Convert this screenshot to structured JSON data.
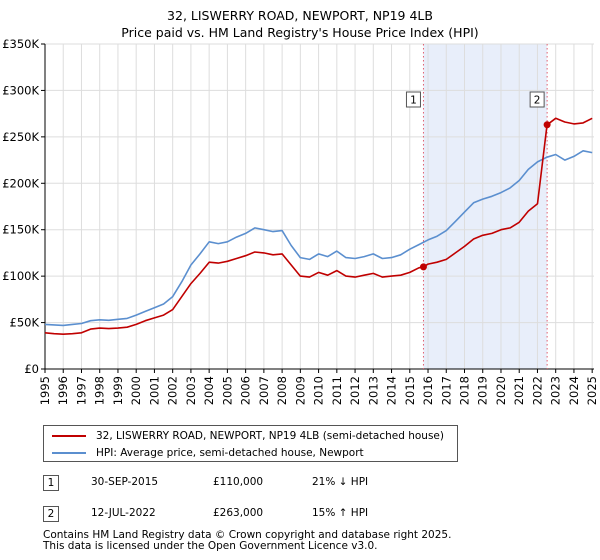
{
  "title_line1": "32, LISWERRY ROAD, NEWPORT, NP19 4LB",
  "title_line2": "Price paid vs. HM Land Registry's House Price Index (HPI)",
  "colors": {
    "property": "#c00000",
    "hpi": "#5b8fcf",
    "shade": "#e8eefa",
    "grid": "#dddddd",
    "marker_line": "#e06070"
  },
  "chart_data": {
    "type": "line",
    "xlim": [
      1995.0,
      2025.1
    ],
    "ylim": [
      0,
      350000
    ],
    "y_ticks": [
      0,
      50000,
      100000,
      150000,
      200000,
      250000,
      300000,
      350000
    ],
    "y_tick_labels": [
      "£0",
      "£50K",
      "£100K",
      "£150K",
      "£200K",
      "£250K",
      "£300K",
      "£350K"
    ],
    "x_ticks": [
      1995,
      1996,
      1997,
      1998,
      1999,
      2000,
      2001,
      2002,
      2003,
      2004,
      2005,
      2006,
      2007,
      2008,
      2009,
      2010,
      2011,
      2012,
      2013,
      2014,
      2015,
      2016,
      2017,
      2018,
      2019,
      2020,
      2021,
      2022,
      2023,
      2024,
      2025
    ],
    "x_tick_labels": [
      "1995",
      "1996",
      "1997",
      "1998",
      "1999",
      "2000",
      "2001",
      "2002",
      "2003",
      "2004",
      "2005",
      "2006",
      "2007",
      "2008",
      "2009",
      "2010",
      "2011",
      "2012",
      "2013",
      "2014",
      "2015",
      "2016",
      "2017",
      "2018",
      "2019",
      "2020",
      "2021",
      "2022",
      "2023",
      "2024",
      "2025"
    ],
    "shaded_range": [
      2015.75,
      2022.53
    ],
    "series": [
      {
        "name": "32, LISWERRY ROAD, NEWPORT, NP19 4LB (semi-detached house)",
        "key": "property",
        "x": [
          1995.0,
          1995.5,
          1996.0,
          1996.5,
          1997.0,
          1997.5,
          1998.0,
          1998.5,
          1999.0,
          1999.5,
          2000.0,
          2000.5,
          2001.0,
          2001.5,
          2002.0,
          2002.5,
          2003.0,
          2003.5,
          2004.0,
          2004.5,
          2005.0,
          2005.5,
          2006.0,
          2006.5,
          2007.0,
          2007.5,
          2008.0,
          2008.5,
          2009.0,
          2009.5,
          2010.0,
          2010.5,
          2011.0,
          2011.5,
          2012.0,
          2012.5,
          2013.0,
          2013.5,
          2014.0,
          2014.5,
          2015.0,
          2015.5,
          2015.75,
          2016.0,
          2016.5,
          2017.0,
          2017.5,
          2018.0,
          2018.5,
          2019.0,
          2019.5,
          2020.0,
          2020.5,
          2021.0,
          2021.5,
          2022.0,
          2022.5,
          2022.53,
          2023.0,
          2023.5,
          2024.0,
          2024.5,
          2025.0
        ],
        "values": [
          39000,
          38000,
          37500,
          38000,
          39000,
          43000,
          44000,
          43500,
          44000,
          45000,
          48000,
          52000,
          55000,
          58000,
          64000,
          78000,
          92000,
          103000,
          115000,
          114000,
          116000,
          119000,
          122000,
          126000,
          125000,
          123000,
          124000,
          112000,
          100000,
          99000,
          104000,
          101000,
          106000,
          100000,
          99000,
          101000,
          103000,
          99000,
          100000,
          101000,
          104000,
          109000,
          110000,
          113000,
          115000,
          118000,
          125000,
          132000,
          140000,
          144000,
          146000,
          150000,
          152000,
          158000,
          170000,
          178000,
          259000,
          263000,
          270000,
          266000,
          264000,
          265000,
          270000
        ]
      },
      {
        "name": "HPI: Average price, semi-detached house, Newport",
        "key": "hpi",
        "x": [
          1995.0,
          1995.5,
          1996.0,
          1996.5,
          1997.0,
          1997.5,
          1998.0,
          1998.5,
          1999.0,
          1999.5,
          2000.0,
          2000.5,
          2001.0,
          2001.5,
          2002.0,
          2002.5,
          2003.0,
          2003.5,
          2004.0,
          2004.5,
          2005.0,
          2005.5,
          2006.0,
          2006.5,
          2007.0,
          2007.5,
          2008.0,
          2008.5,
          2009.0,
          2009.5,
          2010.0,
          2010.5,
          2011.0,
          2011.5,
          2012.0,
          2012.5,
          2013.0,
          2013.5,
          2014.0,
          2014.5,
          2015.0,
          2015.5,
          2016.0,
          2016.5,
          2017.0,
          2017.5,
          2018.0,
          2018.5,
          2019.0,
          2019.5,
          2020.0,
          2020.5,
          2021.0,
          2021.5,
          2022.0,
          2022.5,
          2023.0,
          2023.5,
          2024.0,
          2024.5,
          2025.0
        ],
        "values": [
          48000,
          47500,
          47000,
          48000,
          49000,
          52000,
          53000,
          52500,
          53500,
          54500,
          58000,
          62000,
          66000,
          70000,
          78000,
          94000,
          112000,
          124000,
          137000,
          135000,
          137000,
          142000,
          146000,
          152000,
          150000,
          148000,
          149000,
          133000,
          120000,
          118000,
          124000,
          121000,
          127000,
          120000,
          119000,
          121000,
          124000,
          119000,
          120000,
          123000,
          129000,
          134000,
          139000,
          143000,
          149000,
          159000,
          169000,
          179000,
          183000,
          186000,
          190000,
          195000,
          203000,
          215000,
          223000,
          228000,
          231000,
          225000,
          229000,
          235000,
          233000
        ]
      }
    ],
    "sales": [
      {
        "id": "1",
        "x": 2015.75,
        "value": 110000,
        "date": "30-SEP-2015",
        "price": "£110,000",
        "hpi_note": "21% ↓ HPI"
      },
      {
        "id": "2",
        "x": 2022.53,
        "value": 263000,
        "date": "12-JUL-2022",
        "price": "£263,000",
        "hpi_note": "15% ↑ HPI"
      }
    ]
  },
  "legend": {
    "property_label": "32, LISWERRY ROAD, NEWPORT, NP19 4LB (semi-detached house)",
    "hpi_label": "HPI: Average price, semi-detached house, Newport"
  },
  "footer": {
    "line1": "Contains HM Land Registry data © Crown copyright and database right 2025.",
    "line2": "This data is licensed under the Open Government Licence v3.0."
  }
}
